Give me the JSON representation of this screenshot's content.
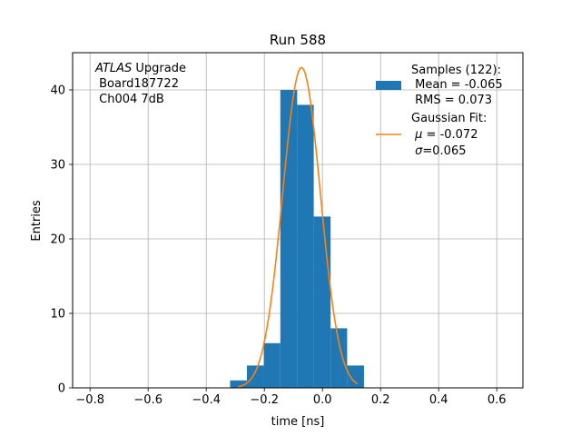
{
  "chart_data": {
    "type": "histogram",
    "title": "Run 588",
    "xlabel": "time [ns]",
    "ylabel": "Entries",
    "xlim": [
      -0.86,
      0.69
    ],
    "ylim": [
      0,
      45
    ],
    "xticks": [
      -0.8,
      -0.6,
      -0.4,
      -0.2,
      0.0,
      0.2,
      0.4,
      0.6
    ],
    "xtick_labels": [
      "−0.8",
      "−0.6",
      "−0.4",
      "−0.2",
      "0.0",
      "0.2",
      "0.4",
      "0.6"
    ],
    "yticks": [
      0,
      10,
      20,
      30,
      40
    ],
    "ytick_labels": [
      "0",
      "10",
      "20",
      "30",
      "40"
    ],
    "grid": true,
    "bins": [
      {
        "x0": -0.318,
        "x1": -0.26,
        "count": 1
      },
      {
        "x0": -0.26,
        "x1": -0.202,
        "count": 3
      },
      {
        "x0": -0.202,
        "x1": -0.145,
        "count": 6
      },
      {
        "x0": -0.145,
        "x1": -0.087,
        "count": 40
      },
      {
        "x0": -0.087,
        "x1": -0.03,
        "count": 38
      },
      {
        "x0": -0.03,
        "x1": 0.028,
        "count": 23
      },
      {
        "x0": 0.028,
        "x1": 0.085,
        "count": 8
      },
      {
        "x0": 0.085,
        "x1": 0.143,
        "count": 3
      }
    ],
    "fit": {
      "type": "gaussian",
      "mu": -0.072,
      "sigma": 0.065,
      "amplitude": 43,
      "xrange": [
        -0.29,
        0.12
      ]
    },
    "colors": {
      "hist": "#1f77b4",
      "fit": "#ff7f0e",
      "grid": "#b0b0b0"
    },
    "annotation": {
      "line1_italic": "ATLAS",
      "line1_rest": " Upgrade",
      "line2": " Board187722",
      "line3": " Ch004 7dB"
    },
    "legend": {
      "placement": "top-right",
      "samples": {
        "line1": "Samples (122):",
        "line2": " Mean = -0.065",
        "line3": " RMS = 0.073"
      },
      "fit": {
        "line1": "Gaussian Fit:",
        "line2_pre": " μ",
        "line2_post": " = -0.072",
        "line3_pre": " σ",
        "line3_post": "=0.065"
      }
    }
  }
}
